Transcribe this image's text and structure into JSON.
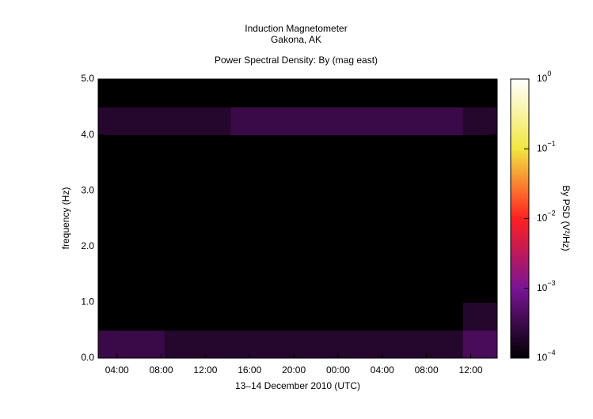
{
  "chart_data": {
    "type": "heatmap",
    "title": "Induction Magnetometer",
    "subtitle": "Gakona, AK",
    "plot_title": "Power Spectral Density: By (mag east)",
    "xlabel": "13–14 December 2010 (UTC)",
    "ylabel": "frequency (Hz)",
    "colorbar_label": "By PSD (V²/Hz)",
    "xlim": [
      2.3,
      38.4
    ],
    "xticks": [
      {
        "value": 4,
        "label": "04:00"
      },
      {
        "value": 8,
        "label": "08:00"
      },
      {
        "value": 12,
        "label": "12:00"
      },
      {
        "value": 16,
        "label": "16:00"
      },
      {
        "value": 20,
        "label": "20:00"
      },
      {
        "value": 24,
        "label": "00:00"
      },
      {
        "value": 28,
        "label": "04:00"
      },
      {
        "value": 32,
        "label": "08:00"
      },
      {
        "value": 36,
        "label": "12:00"
      }
    ],
    "ylim": [
      0,
      5
    ],
    "yticks": [
      {
        "value": 0,
        "label": "0.0"
      },
      {
        "value": 1,
        "label": "1.0"
      },
      {
        "value": 2,
        "label": "2.0"
      },
      {
        "value": 3,
        "label": "3.0"
      },
      {
        "value": 4,
        "label": "4.0"
      },
      {
        "value": 5,
        "label": "5.0"
      }
    ],
    "x_bins": [
      2.3,
      5.3,
      8.3,
      11.3,
      14.3,
      17.3,
      20.3,
      23.3,
      26.3,
      29.3,
      32.3,
      35.3,
      38.4
    ],
    "y_bins": [
      0,
      0.5,
      1,
      1.5,
      2,
      2.5,
      3,
      3.5,
      4,
      4.5,
      5
    ],
    "z": [
      [
        0.0003,
        0.0003,
        0.0002,
        0.0002,
        0.0002,
        0.0002,
        0.0002,
        0.0002,
        0.0002,
        0.0002,
        0.0002,
        0.0004
      ],
      [
        0.0001,
        0.0001,
        0.0001,
        0.0001,
        0.0001,
        0.0001,
        0.0001,
        0.0001,
        0.0001,
        0.0001,
        0.0001,
        0.0002
      ],
      [
        0.0001,
        0.0001,
        0.0001,
        0.0001,
        0.0001,
        0.0001,
        0.0001,
        0.0001,
        0.0001,
        0.0001,
        0.0001,
        0.0001
      ],
      [
        0.0001,
        0.0001,
        0.0001,
        0.0001,
        0.0001,
        0.0001,
        0.0001,
        0.0001,
        0.0001,
        0.0001,
        0.0001,
        0.0001
      ],
      [
        0.0001,
        0.0001,
        0.0001,
        0.0001,
        0.0001,
        0.0001,
        0.0001,
        0.0001,
        0.0001,
        0.0001,
        0.0001,
        0.0001
      ],
      [
        0.0001,
        0.0001,
        0.0001,
        0.0001,
        0.0001,
        0.0001,
        0.0001,
        0.0001,
        0.0001,
        0.0001,
        0.0001,
        0.0001
      ],
      [
        0.0001,
        0.0001,
        0.0001,
        0.0001,
        0.0001,
        0.0001,
        0.0001,
        0.0001,
        0.0001,
        0.0001,
        0.0001,
        0.0001
      ],
      [
        0.0001,
        0.0001,
        0.0001,
        0.0001,
        0.0001,
        0.0001,
        0.0001,
        0.0001,
        0.0001,
        0.0001,
        0.0001,
        0.0001
      ],
      [
        0.0002,
        0.0002,
        0.0002,
        0.0002,
        0.0003,
        0.0003,
        0.0003,
        0.0003,
        0.0003,
        0.0003,
        0.0003,
        0.0002
      ],
      [
        0.0001,
        0.0001,
        0.0001,
        0.0001,
        0.0001,
        0.0001,
        0.0001,
        0.0001,
        0.0001,
        0.0001,
        0.0001,
        0.0001
      ]
    ],
    "clim": [
      0.0001,
      1
    ],
    "clog": true,
    "cticks": [
      {
        "value": 0.0001,
        "label": "10",
        "exp": "−4"
      },
      {
        "value": 0.001,
        "label": "10",
        "exp": "−3"
      },
      {
        "value": 0.01,
        "label": "10",
        "exp": "−2"
      },
      {
        "value": 0.1,
        "label": "10",
        "exp": "−1"
      },
      {
        "value": 1,
        "label": "10",
        "exp": "0"
      }
    ],
    "colormap": [
      "#000000",
      "#7a1496",
      "#ff2020",
      "#f2e640",
      "#ffffff"
    ]
  }
}
